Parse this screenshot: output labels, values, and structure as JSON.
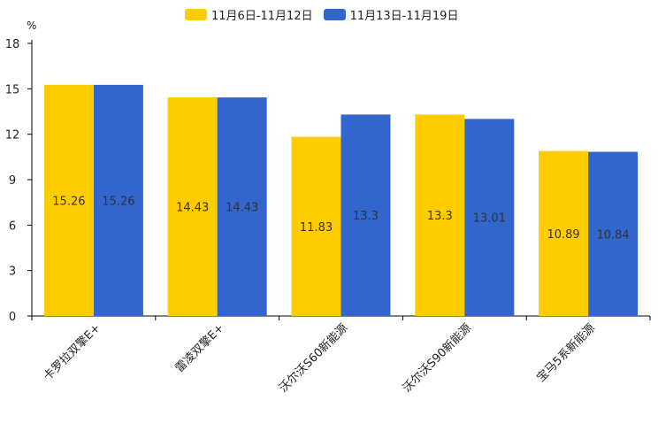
{
  "chart_data": {
    "type": "bar",
    "title": "",
    "ylabel": "%",
    "xlabel": "",
    "ylim": [
      0,
      18
    ],
    "yticks": [
      0,
      3,
      6,
      9,
      12,
      15,
      18
    ],
    "categories": [
      "卡罗拉双擎E+",
      "雷凌双擎E+",
      "沃尔沃S60新能源",
      "沃尔沃S90新能源",
      "宝马5系新能源"
    ],
    "series": [
      {
        "name": "11月6日-11月12日",
        "color": "#FFCC00",
        "values": [
          15.26,
          14.43,
          11.83,
          13.3,
          10.89
        ]
      },
      {
        "name": "11月13日-11月19日",
        "color": "#3366CC",
        "values": [
          15.26,
          14.43,
          13.3,
          13.01,
          10.84
        ]
      }
    ],
    "grid": false,
    "legend_position": "top-center"
  }
}
